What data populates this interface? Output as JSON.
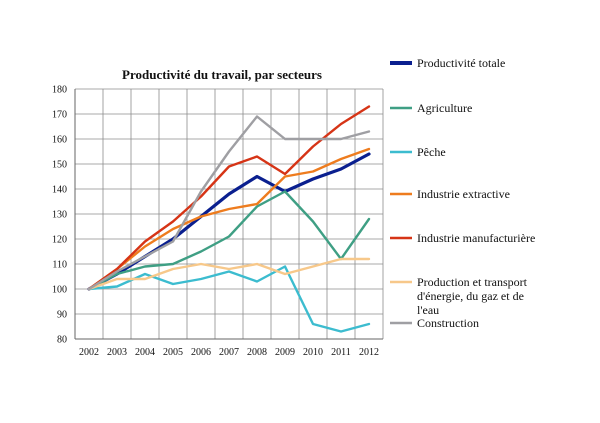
{
  "chart_data": {
    "type": "line",
    "title": "Productivité du travail, par secteurs",
    "xlabel": "",
    "ylabel": "",
    "x": [
      "2002",
      "2003",
      "2004",
      "2005",
      "2006",
      "2007",
      "2008",
      "2009",
      "2010",
      "2011",
      "2012"
    ],
    "ylim": [
      80,
      180
    ],
    "yticks": [
      80,
      90,
      100,
      110,
      120,
      130,
      140,
      150,
      160,
      170,
      180
    ],
    "grid": "both",
    "legend_position": "right",
    "series": [
      {
        "name": "Productivité totale",
        "color": "#0a1f8f",
        "bold": true,
        "values": [
          100,
          106,
          113,
          120,
          129,
          138,
          145,
          139,
          144,
          148,
          154
        ]
      },
      {
        "name": "Agriculture",
        "color": "#3f9f84",
        "bold": false,
        "values": [
          100,
          106,
          109,
          110,
          115,
          121,
          133,
          139,
          127,
          112,
          128
        ]
      },
      {
        "name": "Pêche",
        "color": "#3cbccf",
        "bold": false,
        "values": [
          100,
          101,
          106,
          102,
          104,
          107,
          103,
          109,
          86,
          83,
          86
        ]
      },
      {
        "name": "Industrie extractive",
        "color": "#ee7c1e",
        "bold": false,
        "values": [
          100,
          108,
          117,
          124,
          129,
          132,
          134,
          145,
          147,
          152,
          156
        ]
      },
      {
        "name": "Industrie manufacturière",
        "color": "#d63416",
        "bold": false,
        "values": [
          100,
          108,
          119,
          127,
          137,
          149,
          153,
          146,
          157,
          166,
          173
        ]
      },
      {
        "name": "Production et transport d'énergie, du gaz et de l'eau",
        "color": "#f7c88a",
        "bold": false,
        "values": [
          100,
          104,
          104,
          108,
          110,
          108,
          110,
          106,
          109,
          112,
          112
        ]
      },
      {
        "name": "Construction",
        "color": "#9f9fa3",
        "bold": false,
        "values": [
          100,
          107,
          113,
          119,
          139,
          155,
          169,
          160,
          160,
          160,
          163
        ]
      }
    ]
  },
  "legend": {
    "entries": [
      {
        "lines": [
          "Productivité totale"
        ]
      },
      {
        "lines": [
          "Agriculture"
        ]
      },
      {
        "lines": [
          "Pêche"
        ]
      },
      {
        "lines": [
          "Industrie extractive"
        ]
      },
      {
        "lines": [
          "Industrie manufacturière"
        ]
      },
      {
        "lines": [
          "Production et transport",
          "d'énergie, du gaz et de",
          "l'eau"
        ]
      },
      {
        "lines": [
          "Construction"
        ]
      }
    ]
  }
}
